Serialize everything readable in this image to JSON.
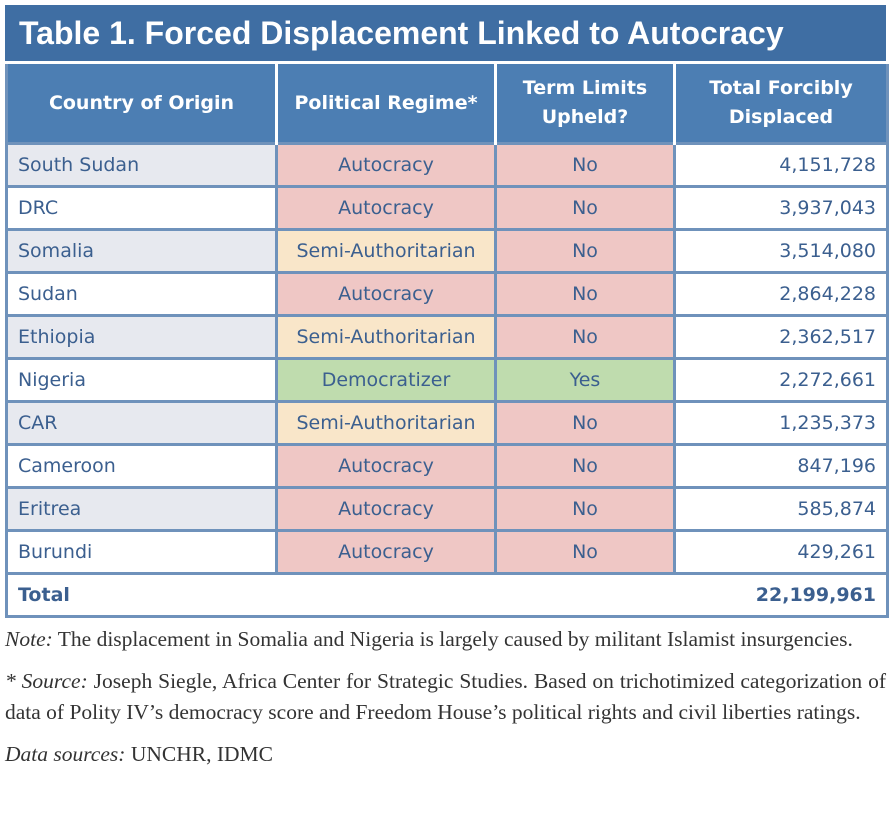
{
  "title": "Table 1. Forced Displacement Linked to Autocracy",
  "headers": {
    "country": "Country of Origin",
    "regime": "Political Regime*",
    "term_limits": "Term Limits Upheld?",
    "displaced": "Total Forcibly Displaced"
  },
  "rows": [
    {
      "country": "South Sudan",
      "regime": "Autocracy",
      "term_limits": "No",
      "displaced": "4,151,728"
    },
    {
      "country": "DRC",
      "regime": "Autocracy",
      "term_limits": "No",
      "displaced": "3,937,043"
    },
    {
      "country": "Somalia",
      "regime": "Semi-Authoritarian",
      "term_limits": "No",
      "displaced": "3,514,080"
    },
    {
      "country": "Sudan",
      "regime": "Autocracy",
      "term_limits": "No",
      "displaced": "2,864,228"
    },
    {
      "country": "Ethiopia",
      "regime": "Semi-Authoritarian",
      "term_limits": "No",
      "displaced": "2,362,517"
    },
    {
      "country": "Nigeria",
      "regime": "Democratizer",
      "term_limits": "Yes",
      "displaced": "2,272,661"
    },
    {
      "country": "CAR",
      "regime": "Semi-Authoritarian",
      "term_limits": "No",
      "displaced": "1,235,373"
    },
    {
      "country": "Cameroon",
      "regime": "Autocracy",
      "term_limits": "No",
      "displaced": "847,196"
    },
    {
      "country": "Eritrea",
      "regime": "Autocracy",
      "term_limits": "No",
      "displaced": "585,874"
    },
    {
      "country": "Burundi",
      "regime": "Autocracy",
      "term_limits": "No",
      "displaced": "429,261"
    }
  ],
  "total": {
    "label": "Total",
    "value": "22,199,961"
  },
  "notes": {
    "note_label": "Note:",
    "note_text": "The displacement in Somalia and Nigeria is largely caused by militant Islamist insurgencies.",
    "source_label": "* Source:",
    "source_text": "Joseph Siegle, Africa Center for Strategic Studies. Based on trichotimized categorization of data of Polity IV’s democracy score and Freedom House’s political rights and civil liberties ratings.",
    "data_label": "Data sources:",
    "data_text": "UNCHR, IDMC"
  },
  "colors": {
    "title_bg": "#3f6ea3",
    "header_bg": "#4c7eb3",
    "autocracy": "#efc7c5",
    "semi_authoritarian": "#f9e6c9",
    "democratizer": "#bfdcae",
    "text": "#3b5f8f"
  }
}
